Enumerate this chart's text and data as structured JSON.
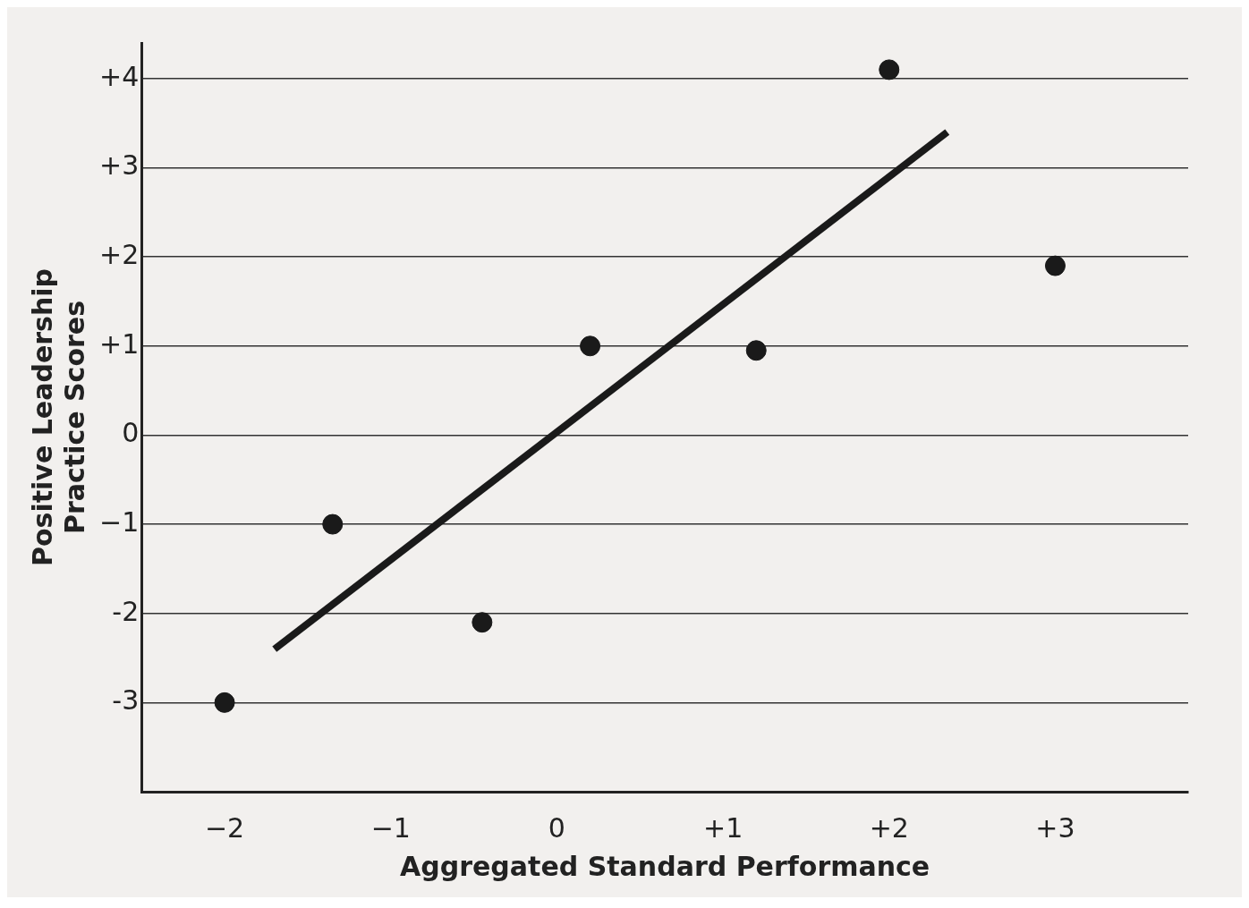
{
  "chart_data": {
    "type": "scatter",
    "xlabel": "Aggregated Standard Performance",
    "ylabel": "Positive Leadership\nPractice Scores",
    "xlim": [
      -2.5,
      3.8
    ],
    "ylim": [
      -4,
      4.4
    ],
    "xticks": [
      {
        "value": -2,
        "label": "−2"
      },
      {
        "value": -1,
        "label": "−1"
      },
      0,
      {
        "value": 1,
        "label": "+1"
      },
      {
        "value": 2,
        "label": "+2"
      },
      {
        "value": 3,
        "label": "+3"
      }
    ],
    "yticks": [
      {
        "value": -3,
        "label": "-3"
      },
      {
        "value": -2,
        "label": "-2"
      },
      {
        "value": -1,
        "label": "−1"
      },
      0,
      {
        "value": 1,
        "label": "+1"
      },
      {
        "value": 2,
        "label": "+2"
      },
      {
        "value": 3,
        "label": "+3"
      },
      {
        "value": 4,
        "label": "+4"
      }
    ],
    "grid": "y",
    "legend": false,
    "series": [
      {
        "marker": "circle",
        "color": "#1a1a1a",
        "x": [
          -2,
          -1.35,
          -0.45,
          0.2,
          1.2,
          2,
          3
        ],
        "values": [
          -3,
          -1,
          -2.1,
          1,
          0.95,
          4.1,
          1.9
        ]
      },
      {
        "type": "line",
        "marker": "none",
        "color": "#1a1a1a",
        "x": [
          -1.7,
          2.35
        ],
        "values": [
          -2.4,
          3.4
        ]
      }
    ]
  }
}
